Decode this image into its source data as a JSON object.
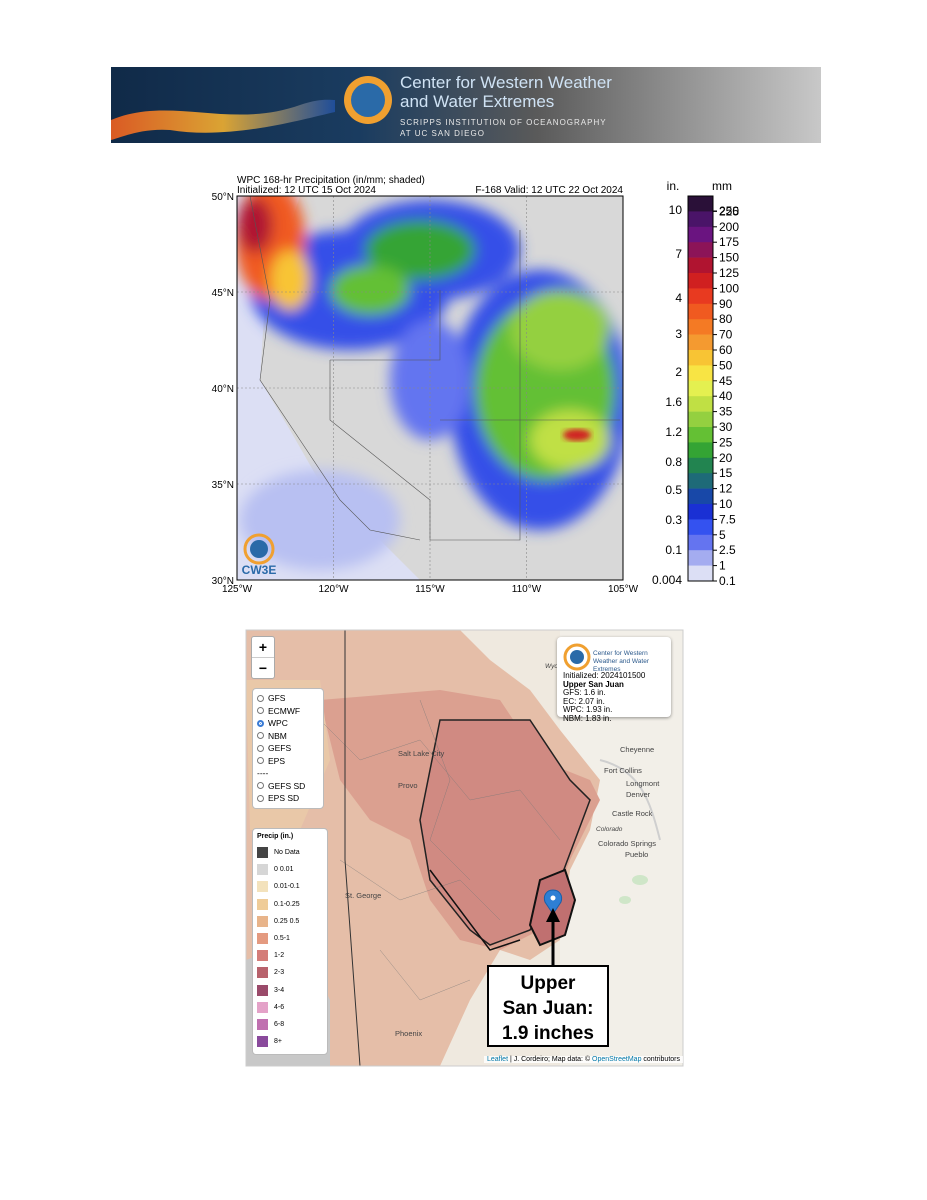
{
  "header": {
    "line1": "Center for Western Weather",
    "line2": "and Water Extremes",
    "line3": "SCRIPPS INSTITUTION OF OCEANOGRAPHY",
    "line4": "AT UC SAN DIEGO"
  },
  "precip_map": {
    "title": "WPC 168-hr Precipitation (in/mm; shaded)",
    "initialized": "Initialized: 12 UTC 15 Oct 2024",
    "valid": "F-168  Valid: 12 UTC 22 Oct 2024",
    "lat_labels": [
      "50°N",
      "45°N",
      "40°N",
      "35°N",
      "30°N"
    ],
    "lon_labels": [
      "125°W",
      "120°W",
      "115°W",
      "110°W",
      "105°W"
    ],
    "logo": "CW3E"
  },
  "colorbar": {
    "in_title": "in.",
    "mm_title": "mm",
    "in_labels": [
      "10",
      "7",
      "4",
      "3",
      "2",
      "1.6",
      "1.2",
      "0.8",
      "0.5",
      "0.3",
      "0.1",
      "0.004"
    ],
    "mm_labels": [
      "250",
      "225",
      "200",
      "175",
      "150",
      "125",
      "100",
      "90",
      "80",
      "70",
      "60",
      "50",
      "45",
      "40",
      "35",
      "30",
      "25",
      "20",
      "15",
      "12",
      "10",
      "7.5",
      "5",
      "2.5",
      "1",
      "0.1"
    ],
    "colors": [
      "#2a1038",
      "#4a1468",
      "#6a1480",
      "#8c1458",
      "#b01430",
      "#d02020",
      "#e83a20",
      "#f05a20",
      "#f47a24",
      "#f49a30",
      "#f8c434",
      "#f8e444",
      "#e4f050",
      "#c0e044",
      "#94d040",
      "#64c034",
      "#34a434",
      "#228450",
      "#1e6a78",
      "#1848a8",
      "#1a30d4",
      "#3452f0",
      "#6474f0",
      "#a4acf0",
      "#dcdff5"
    ]
  },
  "web_map": {
    "zoom_in": "+",
    "zoom_out": "−",
    "models": [
      "GFS",
      "ECMWF",
      "WPC",
      "NBM",
      "GEFS",
      "EPS",
      "----",
      "GEFS SD",
      "EPS SD"
    ],
    "selected": "WPC",
    "legend": {
      "title": "Precip (in.)",
      "items": [
        {
          "label": "No Data",
          "color": "#444444"
        },
        {
          "label": "0 0.01",
          "color": "#d6d6d6"
        },
        {
          "label": "0.01-0.1",
          "color": "#f3e2bc"
        },
        {
          "label": "0.1-0.25",
          "color": "#efcc98"
        },
        {
          "label": "0.25 0.5",
          "color": "#e8b48a"
        },
        {
          "label": "0.5-1",
          "color": "#e49a80"
        },
        {
          "label": "1-2",
          "color": "#d47c78"
        },
        {
          "label": "2-3",
          "color": "#b8626c"
        },
        {
          "label": "3-4",
          "color": "#9a4a6a"
        },
        {
          "label": "4-6",
          "color": "#e4a2c8"
        },
        {
          "label": "6-8",
          "color": "#c070b0"
        },
        {
          "label": "8+",
          "color": "#8a4a9c"
        }
      ]
    },
    "popup": {
      "org": "Center for Western Weather and Water Extremes",
      "initialized": "Initialized: 2024101500",
      "basin": "Upper San Juan",
      "lines": [
        "GFS: 1.6 in.",
        "EC: 2.07 in.",
        "WPC: 1.93 in.",
        "NBM: 1.83 in."
      ]
    },
    "callout": [
      "Upper",
      "San Juan:",
      "1.9 inches"
    ],
    "attribution": [
      "Leaflet",
      " | J. Cordeiro; Map data: © ",
      "OpenStreetMap",
      " contributors"
    ],
    "places": [
      "Wyoming",
      "Cheyenne",
      "Fort Collins",
      "Longmont",
      "Denver",
      "Castle Rock",
      "Colorado",
      "Colorado Springs",
      "Pueblo",
      "Salt Lake City",
      "Provo",
      "St. George",
      "Phoenix"
    ]
  }
}
